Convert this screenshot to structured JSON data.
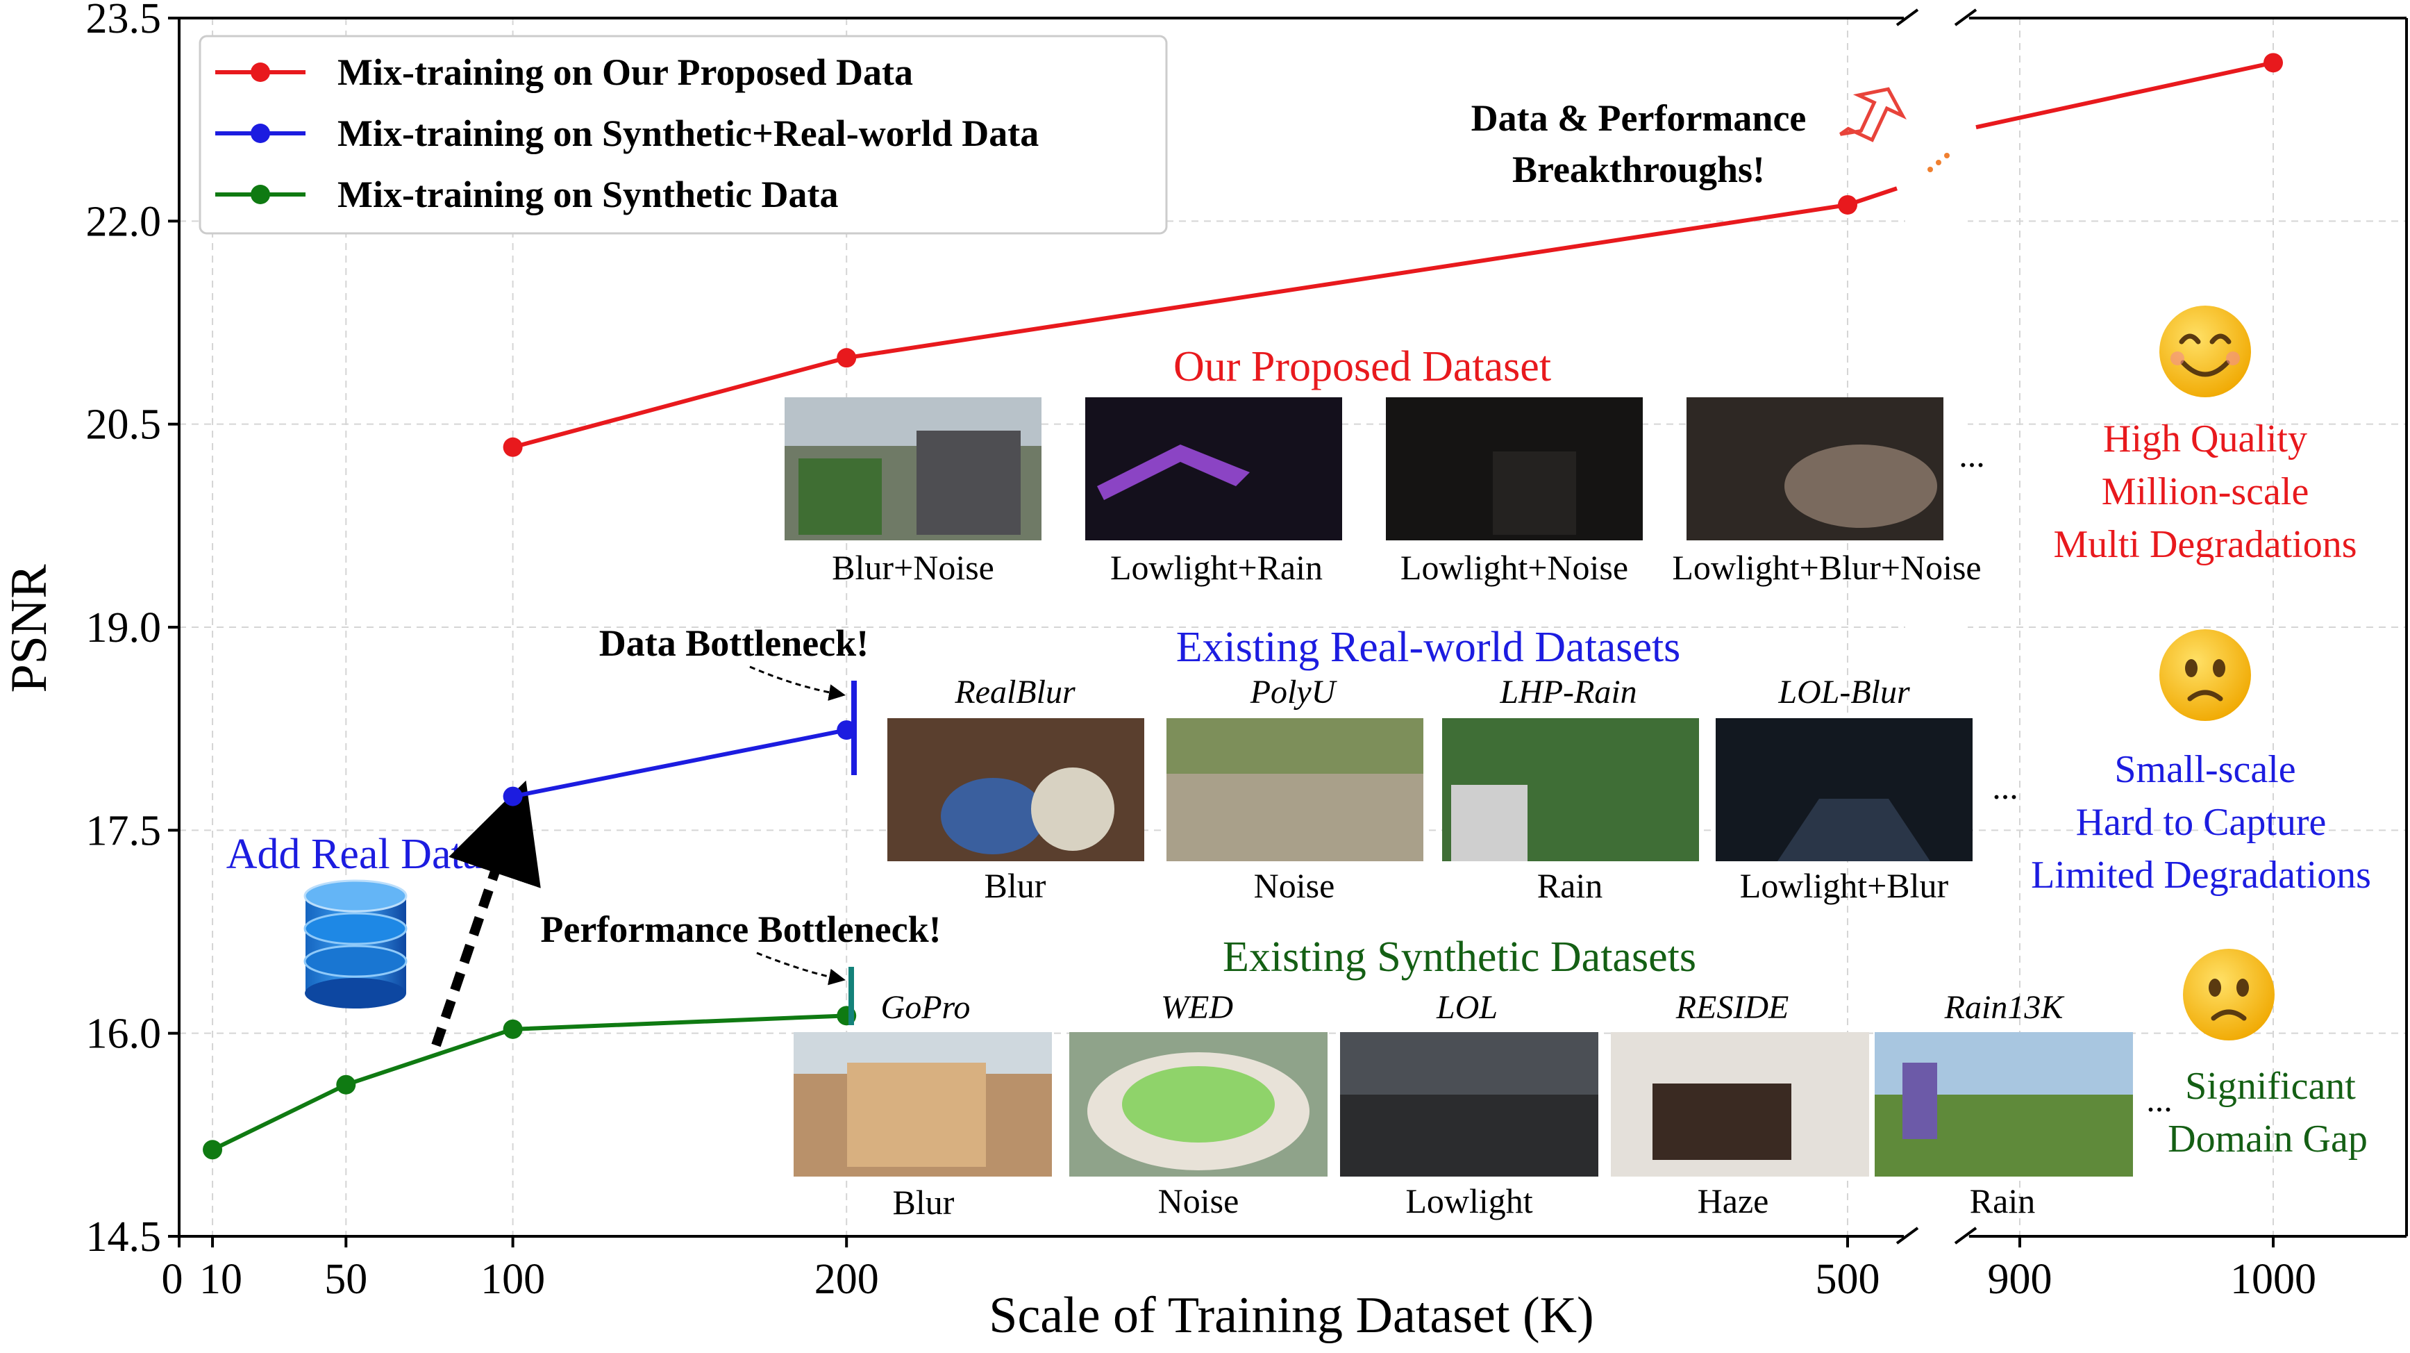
{
  "chart_data": {
    "type": "line",
    "xlabel": "Scale of Training Dataset (K)",
    "ylabel": "PSNR",
    "xlim": [
      0,
      1040
    ],
    "ylim": [
      14.5,
      23.5
    ],
    "x_ticks": [
      "0",
      "10",
      "50",
      "100",
      "200",
      "500",
      "900",
      "1000"
    ],
    "y_ticks": [
      "14.5",
      "16.0",
      "17.5",
      "19.0",
      "20.5",
      "22.0",
      "23.5"
    ],
    "x_axis_break": [
      500,
      900
    ],
    "grid": true,
    "legend_position": "top-left",
    "series": [
      {
        "name": "Mix-training on Our Proposed Data",
        "color": "#e8191d",
        "x": [
          100,
          200,
          500,
          1000
        ],
        "y": [
          20.33,
          20.99,
          22.12,
          23.17
        ]
      },
      {
        "name": "Mix-training on Synthetic+Real-world Data",
        "color": "#1c1ce0",
        "x": [
          100,
          200
        ],
        "y": [
          17.75,
          18.24
        ]
      },
      {
        "name": "Mix-training on Synthetic Data",
        "color": "#0f7a12",
        "x": [
          10,
          50,
          100,
          200
        ],
        "y": [
          15.14,
          15.62,
          16.03,
          16.13
        ]
      }
    ],
    "annotations": {
      "breakthrough": [
        "Data & Performance",
        "Breakthroughs!"
      ],
      "data_bottleneck": "Data Bottleneck!",
      "performance_bottleneck": "Performance Bottleneck!",
      "add_real_data": "Add Real Data"
    },
    "panels": {
      "proposed": {
        "title": "Our Proposed Dataset",
        "captions": [
          "Blur+Noise",
          "Lowlight+Rain",
          "Lowlight+Noise",
          "Lowlight+Blur+Noise"
        ],
        "ellipsis": "...",
        "notes": [
          "High Quality",
          "Million-scale",
          "Multi Degradations"
        ]
      },
      "real_world": {
        "title": "Existing Real-world Datasets",
        "names": [
          "RealBlur",
          "PolyU",
          "LHP-Rain",
          "LOL-Blur"
        ],
        "captions": [
          "Blur",
          "Noise",
          "Rain",
          "Lowlight+Blur"
        ],
        "ellipsis": "...",
        "notes": [
          "Small-scale",
          "Hard to Capture",
          "Limited Degradations"
        ]
      },
      "synthetic": {
        "title": "Existing Synthetic Datasets",
        "names": [
          "GoPro",
          "WED",
          "LOL",
          "RESIDE",
          "Rain13K"
        ],
        "captions": [
          "Blur",
          "Noise",
          "Lowlight",
          "Haze",
          "Rain"
        ],
        "ellipsis": "...",
        "notes": [
          "Significant",
          "Domain Gap"
        ]
      }
    },
    "colors": {
      "proposed_text": "#e8191d",
      "real_text": "#1c1ce0",
      "synthetic_text": "#145f14",
      "emoji": "#f5c518"
    }
  }
}
